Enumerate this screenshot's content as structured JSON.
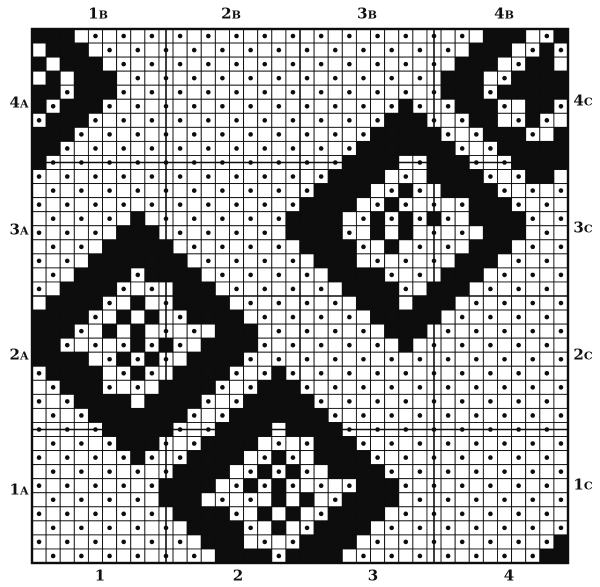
{
  "colors": {
    "ink": "#0d0d0d",
    "paper": "#ffffff"
  },
  "grid": {
    "cols": 38,
    "rows": 38,
    "cell_symbols": [
      "white-square",
      "dotted-square",
      "black-fill"
    ]
  },
  "labels": {
    "top": [
      {
        "num": "1",
        "letter": "B"
      },
      {
        "num": "2",
        "letter": "B"
      },
      {
        "num": "3",
        "letter": "B"
      },
      {
        "num": "4",
        "letter": "B"
      }
    ],
    "bottom": [
      {
        "num": "1"
      },
      {
        "num": "2"
      },
      {
        "num": "3"
      },
      {
        "num": "4"
      }
    ],
    "left": [
      {
        "num": "4",
        "letter": "A"
      },
      {
        "num": "3",
        "letter": "A"
      },
      {
        "num": "2",
        "letter": "A"
      },
      {
        "num": "1",
        "letter": "A"
      }
    ],
    "right": [
      {
        "num": "4",
        "letter": "C"
      },
      {
        "num": "3",
        "letter": "C"
      },
      {
        "num": "2",
        "letter": "C"
      },
      {
        "num": "1",
        "letter": "C"
      }
    ]
  }
}
